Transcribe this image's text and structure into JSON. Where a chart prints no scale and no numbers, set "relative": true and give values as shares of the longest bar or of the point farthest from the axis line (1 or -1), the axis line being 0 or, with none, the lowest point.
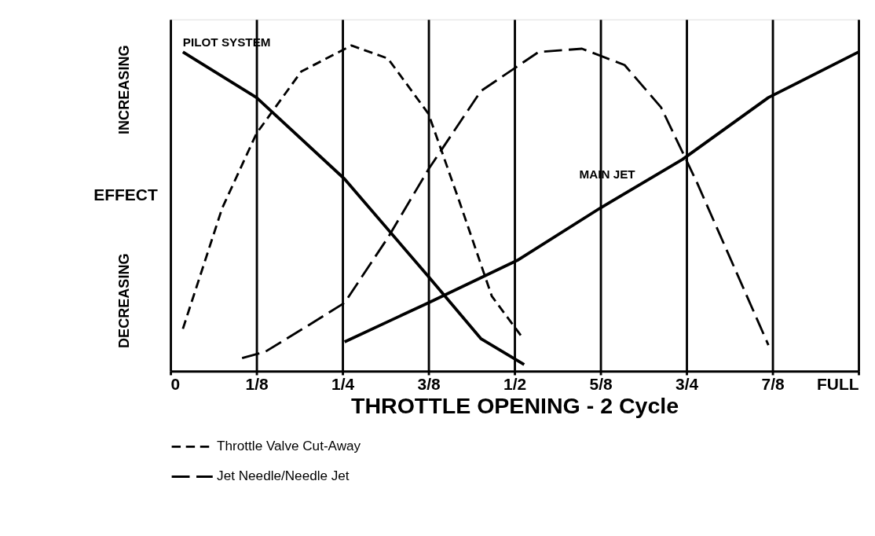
{
  "chart_data": {
    "type": "line",
    "relative": true,
    "xlabel": "THROTTLE OPENING - 2 Cycle",
    "ylabel": "EFFECT",
    "annotations": [
      "INCREASING",
      "DECREASING"
    ],
    "xlim": [
      0,
      1
    ],
    "xticks": [
      0,
      {
        "value": 0.125,
        "label": "1/8"
      },
      {
        "value": 0.25,
        "label": "1/4"
      },
      {
        "value": 0.375,
        "label": "3/8"
      },
      {
        "value": 0.5,
        "label": "1/2"
      },
      {
        "value": 0.625,
        "label": "5/8"
      },
      {
        "value": 0.75,
        "label": "3/4"
      },
      {
        "value": 0.875,
        "label": "7/8"
      },
      {
        "value": 1,
        "label": "FULL"
      }
    ],
    "grid": "x",
    "legend": "bottom",
    "marker": "none",
    "series": [
      {
        "name": "PILOT SYSTEM",
        "color": "#000000",
        "line_style": "solid",
        "x": [
          0.018,
          0.125,
          0.253,
          0.375,
          0.451,
          0.514
        ],
        "values": [
          0.98,
          0.84,
          0.59,
          0.29,
          0.1,
          0.02
        ]
      },
      {
        "name": "MAIN JET",
        "color": "#000000",
        "line_style": "solid",
        "x": [
          0.253,
          0.375,
          0.504,
          0.624,
          0.744,
          0.869,
          1.0
        ],
        "values": [
          0.09,
          0.21,
          0.34,
          0.5,
          0.65,
          0.84,
          0.98
        ]
      },
      {
        "name": "Throttle Valve Cut-Away",
        "color": "#000000",
        "line_style": "dashed",
        "x": [
          0.018,
          0.075,
          0.125,
          0.19,
          0.263,
          0.316,
          0.375,
          0.42,
          0.467,
          0.509
        ],
        "values": [
          0.13,
          0.5,
          0.73,
          0.92,
          1.0,
          0.96,
          0.79,
          0.52,
          0.23,
          0.11
        ]
      },
      {
        "name": "Jet Needle/Needle Jet",
        "color": "#000000",
        "line_style": "dashed",
        "x": [
          0.104,
          0.138,
          0.2,
          0.253,
          0.316,
          0.375,
          0.451,
          0.535,
          0.598,
          0.66,
          0.713,
          0.765,
          0.817,
          0.869
        ],
        "values": [
          0.04,
          0.06,
          0.14,
          0.21,
          0.41,
          0.62,
          0.86,
          0.98,
          0.99,
          0.94,
          0.81,
          0.58,
          0.33,
          0.08
        ]
      }
    ]
  }
}
